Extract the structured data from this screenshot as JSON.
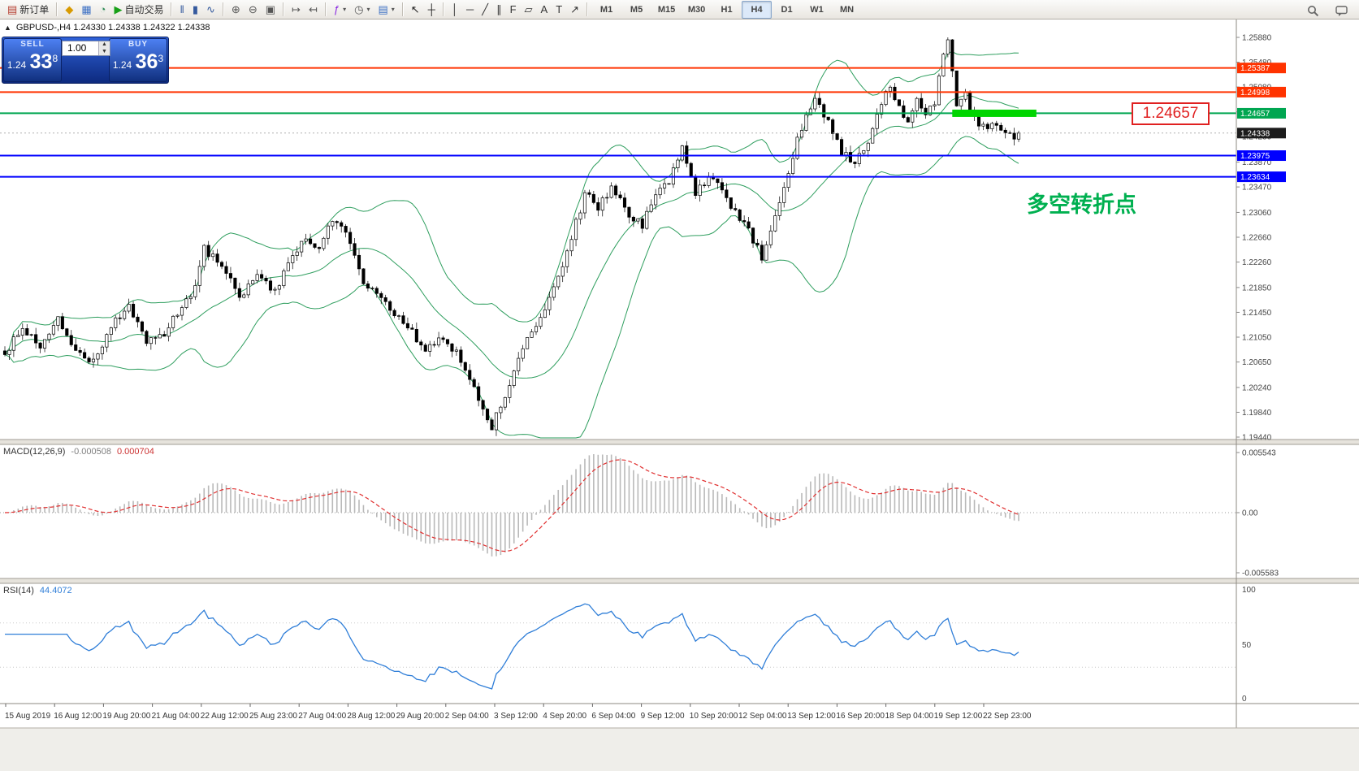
{
  "toolbar": {
    "groups": [
      {
        "items": [
          {
            "name": "new-order-button",
            "glyph": "▤",
            "glyph_color": "#b53c2e",
            "label": "新订单"
          }
        ]
      },
      {
        "items": [
          {
            "name": "profiles-icon",
            "glyph": "◆",
            "glyph_color": "#d89a00"
          },
          {
            "name": "market-watch-icon",
            "glyph": "▦",
            "glyph_color": "#3b6fc4"
          },
          {
            "name": "navigator-icon",
            "glyph": "◔",
            "glyph_color": "#2e8b57"
          },
          {
            "name": "autotrading-button",
            "glyph": "▶",
            "glyph_color": "#18a018",
            "label": "自动交易"
          }
        ]
      },
      {
        "items": [
          {
            "name": "bar-chart-icon",
            "glyph": "‖",
            "glyph_color": "#355a9e"
          },
          {
            "name": "candlestick-chart-icon",
            "glyph": "▮",
            "glyph_color": "#355a9e"
          },
          {
            "name": "line-chart-icon",
            "glyph": "∿",
            "glyph_color": "#355a9e"
          }
        ]
      },
      {
        "items": [
          {
            "name": "zoom-in-icon",
            "glyph": "⊕",
            "glyph_color": "#555555"
          },
          {
            "name": "zoom-out-icon",
            "glyph": "⊖",
            "glyph_color": "#555555"
          },
          {
            "name": "tile-windows-icon",
            "glyph": "▣",
            "glyph_color": "#555555"
          }
        ]
      },
      {
        "items": [
          {
            "name": "auto-scroll-icon",
            "glyph": "↦",
            "glyph_color": "#555555"
          },
          {
            "name": "chart-shift-icon",
            "glyph": "↤",
            "glyph_color": "#555555"
          }
        ]
      },
      {
        "items": [
          {
            "name": "indicators-button",
            "glyph": "ƒ",
            "glyph_color": "#8a2be2",
            "caret": true
          },
          {
            "name": "periods-button",
            "glyph": "◷",
            "glyph_color": "#555555",
            "caret": true
          },
          {
            "name": "templates-button",
            "glyph": "▤",
            "glyph_color": "#3b6fc4",
            "caret": true
          }
        ]
      },
      {
        "items": [
          {
            "name": "cursor-icon",
            "glyph": "↖",
            "glyph_color": "#222222"
          },
          {
            "name": "crosshair-icon",
            "glyph": "┼",
            "glyph_color": "#222222"
          }
        ]
      },
      {
        "items": [
          {
            "name": "vertical-line-icon",
            "glyph": "│",
            "glyph_color": "#333333"
          },
          {
            "name": "horizontal-line-icon",
            "glyph": "─",
            "glyph_color": "#333333"
          },
          {
            "name": "trendline-icon",
            "glyph": "╱",
            "glyph_color": "#333333"
          },
          {
            "name": "channel-icon",
            "glyph": "∥",
            "glyph_color": "#333333"
          },
          {
            "name": "fibonacci-icon",
            "glyph": "F",
            "glyph_color": "#333333"
          },
          {
            "name": "shapes-icon",
            "glyph": "▱",
            "glyph_color": "#333333"
          },
          {
            "name": "text-icon",
            "glyph": "A",
            "glyph_color": "#333333"
          },
          {
            "name": "label-icon",
            "glyph": "T",
            "glyph_color": "#333333"
          },
          {
            "name": "arrows-icon",
            "glyph": "↗",
            "glyph_color": "#333333"
          }
        ]
      }
    ],
    "timeframes": [
      "M1",
      "M5",
      "M15",
      "M30",
      "H1",
      "H4",
      "D1",
      "W1",
      "MN"
    ],
    "active_timeframe": "H4"
  },
  "quote_panel": {
    "sell_label": "SELL",
    "buy_label": "BUY",
    "volume": "1.00",
    "sell_price_main": "1.24",
    "sell_price_big": "33",
    "sell_price_pip": "8",
    "buy_price_main": "1.24",
    "buy_price_big": "36",
    "buy_price_pip": "3"
  },
  "chart": {
    "symbol_ohlc": "GBPUSD-,H4  1.24330 1.24338 1.24322 1.24338",
    "annotation": {
      "text": "多空转折点",
      "color": "#00b050"
    },
    "price_note": {
      "text": "1.24657",
      "color": "#e02020"
    },
    "x_ticks": [
      "15 Aug 2019",
      "16 Aug 12:00",
      "19 Aug 20:00",
      "21 Aug 04:00",
      "22 Aug 12:00",
      "25 Aug 23:00",
      "27 Aug 04:00",
      "28 Aug 12:00",
      "29 Aug 20:00",
      "2 Sep 04:00",
      "3 Sep 12:00",
      "4 Sep 20:00",
      "6 Sep 04:00",
      "9 Sep 12:00",
      "10 Sep 20:00",
      "12 Sep 04:00",
      "13 Sep 12:00",
      "16 Sep 20:00",
      "18 Sep 04:00",
      "19 Sep 12:00",
      "22 Sep 23:00"
    ]
  },
  "chart_data": {
    "type": "candlestick",
    "symbol": "GBPUSD-",
    "period": "H4",
    "bars": 230,
    "last_close": 1.24338,
    "y_range": [
      1.1944,
      1.2588
    ],
    "y_ticks": [
      "1.25880",
      "1.25480",
      "1.25080",
      "1.24680",
      "1.24280",
      "1.23870",
      "1.23470",
      "1.23060",
      "1.22660",
      "1.22260",
      "1.21850",
      "1.21450",
      "1.21050",
      "1.20650",
      "1.20240",
      "1.19840",
      "1.19440"
    ],
    "close_anchors": [
      [
        0,
        1.208
      ],
      [
        4,
        1.2122
      ],
      [
        8,
        1.2086
      ],
      [
        12,
        1.2136
      ],
      [
        16,
        1.2082
      ],
      [
        20,
        1.2068
      ],
      [
        24,
        1.2122
      ],
      [
        28,
        1.2156
      ],
      [
        32,
        1.2098
      ],
      [
        36,
        1.2112
      ],
      [
        40,
        1.2152
      ],
      [
        43,
        1.2186
      ],
      [
        45,
        1.2248
      ],
      [
        49,
        1.2222
      ],
      [
        53,
        1.2168
      ],
      [
        57,
        1.2206
      ],
      [
        61,
        1.2178
      ],
      [
        64,
        1.2222
      ],
      [
        68,
        1.2268
      ],
      [
        71,
        1.2242
      ],
      [
        74,
        1.2296
      ],
      [
        78,
        1.2262
      ],
      [
        81,
        1.2196
      ],
      [
        85,
        1.2168
      ],
      [
        88,
        1.214
      ],
      [
        92,
        1.2112
      ],
      [
        95,
        1.2088
      ],
      [
        99,
        1.2108
      ],
      [
        102,
        1.2078
      ],
      [
        105,
        1.2042
      ],
      [
        108,
        1.1992
      ],
      [
        110,
        1.1962
      ],
      [
        113,
        1.2014
      ],
      [
        116,
        1.2074
      ],
      [
        119,
        1.2114
      ],
      [
        122,
        1.2154
      ],
      [
        125,
        1.2206
      ],
      [
        128,
        1.2264
      ],
      [
        131,
        1.2336
      ],
      [
        134,
        1.2312
      ],
      [
        137,
        1.2344
      ],
      [
        141,
        1.2304
      ],
      [
        144,
        1.2284
      ],
      [
        147,
        1.2334
      ],
      [
        150,
        1.2354
      ],
      [
        153,
        1.2408
      ],
      [
        156,
        1.2334
      ],
      [
        159,
        1.2364
      ],
      [
        162,
        1.2344
      ],
      [
        165,
        1.2304
      ],
      [
        168,
        1.2274
      ],
      [
        171,
        1.2234
      ],
      [
        174,
        1.2294
      ],
      [
        177,
        1.2374
      ],
      [
        180,
        1.2444
      ],
      [
        183,
        1.2486
      ],
      [
        186,
        1.2454
      ],
      [
        189,
        1.2404
      ],
      [
        192,
        1.2384
      ],
      [
        195,
        1.2424
      ],
      [
        198,
        1.2484
      ],
      [
        200,
        1.2514
      ],
      [
        202,
        1.2474
      ],
      [
        204,
        1.245
      ],
      [
        206,
        1.2484
      ],
      [
        208,
        1.2464
      ],
      [
        210,
        1.2486
      ],
      [
        212,
        1.2556
      ],
      [
        213,
        1.2578
      ],
      [
        215,
        1.2484
      ],
      [
        217,
        1.2494
      ],
      [
        219,
        1.2462
      ],
      [
        221,
        1.2442
      ],
      [
        223,
        1.2452
      ],
      [
        225,
        1.2436
      ],
      [
        227,
        1.2428
      ],
      [
        229,
        1.2434
      ]
    ],
    "spike_bar": 213,
    "spike_high": 1.2588,
    "trough_bar": 110,
    "trough_low": 1.1957,
    "levels": [
      {
        "price": 1.25387,
        "label": "1.25387",
        "color": "#ff3300"
      },
      {
        "price": 1.24998,
        "label": "1.24998",
        "color": "#ff3300"
      },
      {
        "price": 1.24657,
        "label": "1.24657",
        "color": "#00a651",
        "highlight": {
          "from_bar": 214,
          "to_bar": 233,
          "color": "#00d500"
        }
      },
      {
        "price": 1.23975,
        "label": "1.23975",
        "color": "#0000ff"
      },
      {
        "price": 1.23634,
        "label": "1.23634",
        "color": "#0000ff"
      }
    ],
    "bid": {
      "price": 1.24338,
      "label": "1.24338",
      "color": "#1c1c1c"
    },
    "bollinger": {
      "period": 20,
      "deviation": 2,
      "color": "#2e9e5e"
    },
    "macd": {
      "fast": 12,
      "slow": 26,
      "signal": 9,
      "histogram_color": "#b9b9b9",
      "signal_color": "#e03030"
    },
    "rsi": {
      "period": 14,
      "color": "#2f7ed8",
      "levels": [
        70,
        30
      ]
    }
  },
  "macd_pane": {
    "label": "MACD(12,26,9)",
    "value_main": "-0.000508",
    "value_signal": "0.000704",
    "axis": [
      "0.005543",
      "0.00",
      "-0.005583"
    ]
  },
  "rsi_pane": {
    "label": "RSI(14)",
    "value": "44.4072",
    "axis": [
      "100",
      "50",
      "0"
    ]
  }
}
